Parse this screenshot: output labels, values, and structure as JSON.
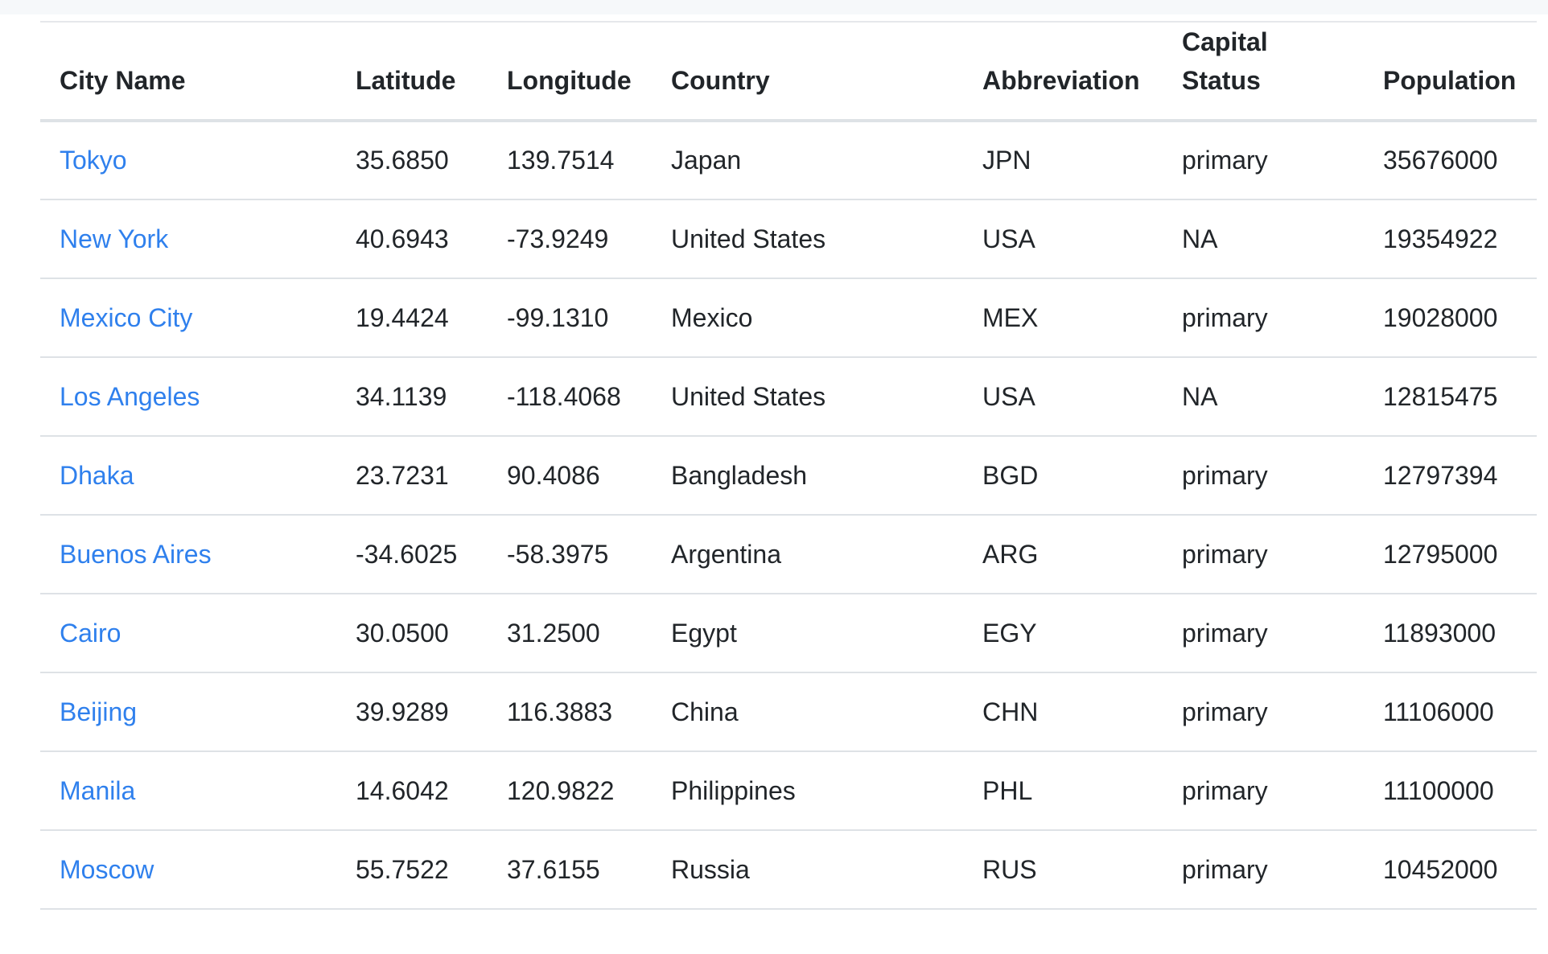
{
  "table": {
    "headers": [
      "City Name",
      "Latitude",
      "Longitude",
      "Country",
      "Abbreviation",
      "Capital Status",
      "Population"
    ],
    "rows": [
      {
        "city": "Tokyo",
        "lat": "35.6850",
        "lng": "139.7514",
        "country": "Japan",
        "abbr": "JPN",
        "capital": "primary",
        "population": "35676000"
      },
      {
        "city": "New York",
        "lat": "40.6943",
        "lng": "-73.9249",
        "country": "United States",
        "abbr": "USA",
        "capital": "NA",
        "population": "19354922"
      },
      {
        "city": "Mexico City",
        "lat": "19.4424",
        "lng": "-99.1310",
        "country": "Mexico",
        "abbr": "MEX",
        "capital": "primary",
        "population": "19028000"
      },
      {
        "city": "Los Angeles",
        "lat": "34.1139",
        "lng": "-118.4068",
        "country": "United States",
        "abbr": "USA",
        "capital": "NA",
        "population": "12815475"
      },
      {
        "city": "Dhaka",
        "lat": "23.7231",
        "lng": "90.4086",
        "country": "Bangladesh",
        "abbr": "BGD",
        "capital": "primary",
        "population": "12797394"
      },
      {
        "city": "Buenos Aires",
        "lat": "-34.6025",
        "lng": "-58.3975",
        "country": "Argentina",
        "abbr": "ARG",
        "capital": "primary",
        "population": "12795000"
      },
      {
        "city": "Cairo",
        "lat": "30.0500",
        "lng": "31.2500",
        "country": "Egypt",
        "abbr": "EGY",
        "capital": "primary",
        "population": "11893000"
      },
      {
        "city": "Beijing",
        "lat": "39.9289",
        "lng": "116.3883",
        "country": "China",
        "abbr": "CHN",
        "capital": "primary",
        "population": "11106000"
      },
      {
        "city": "Manila",
        "lat": "14.6042",
        "lng": "120.9822",
        "country": "Philippines",
        "abbr": "PHL",
        "capital": "primary",
        "population": "11100000"
      },
      {
        "city": "Moscow",
        "lat": "55.7522",
        "lng": "37.6155",
        "country": "Russia",
        "abbr": "RUS",
        "capital": "primary",
        "population": "10452000"
      }
    ]
  },
  "colors": {
    "link": "#2f80ed",
    "text": "#212529",
    "border": "#dee2e6"
  }
}
